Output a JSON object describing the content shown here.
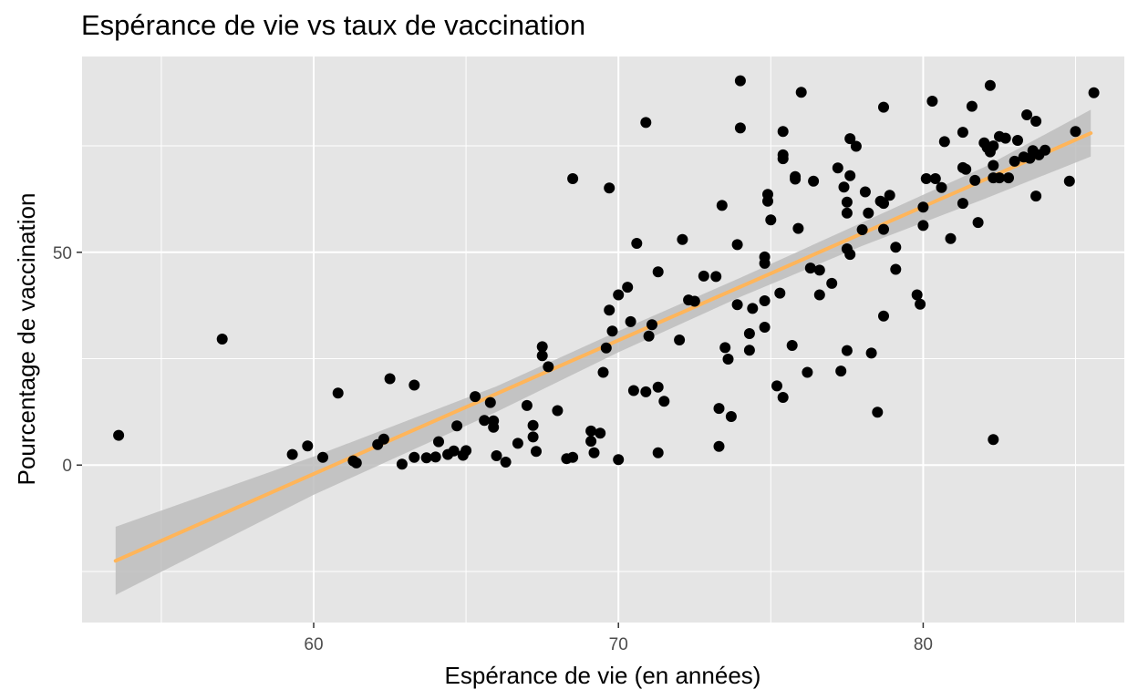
{
  "chart_data": {
    "type": "scatter",
    "title": "Espérance de vie vs taux de vaccination",
    "xlabel": "Espérance de vie (en années)",
    "ylabel": "Pourcentage de vaccination",
    "xlim": [
      52.4,
      86.6
    ],
    "ylim": [
      -37,
      96
    ],
    "x_ticks": [
      60,
      70,
      80
    ],
    "y_ticks": [
      0,
      50
    ],
    "grid": true,
    "legend": "none",
    "colors": {
      "panel": "#e5e5e5",
      "grid": "#ffffff",
      "points": "#000000",
      "fit_line": "#ffb55a",
      "ci_band": "#bdbdbd",
      "tick": "#333333"
    },
    "fit": {
      "method": "linear regression with confidence band",
      "line": [
        [
          53.5,
          -22.5
        ],
        [
          85.5,
          78.0
        ]
      ],
      "band": [
        {
          "x": 53.5,
          "lo": -30.5,
          "hi": -14.5
        },
        {
          "x": 60,
          "lo": -7.0,
          "hi": 2.0
        },
        {
          "x": 66,
          "lo": 12.5,
          "hi": 18.5
        },
        {
          "x": 70,
          "lo": 26.5,
          "hi": 31.5
        },
        {
          "x": 74,
          "lo": 39.5,
          "hi": 44.0
        },
        {
          "x": 78,
          "lo": 51.5,
          "hi": 57.0
        },
        {
          "x": 82,
          "lo": 62.5,
          "hi": 70.0
        },
        {
          "x": 85.5,
          "lo": 72.5,
          "hi": 83.5
        }
      ]
    },
    "points": [
      [
        53.6,
        7
      ],
      [
        57.0,
        29.6
      ],
      [
        59.3,
        2.5
      ],
      [
        59.8,
        4.5
      ],
      [
        60.3,
        1.8
      ],
      [
        60.8,
        16.9
      ],
      [
        61.3,
        1.0
      ],
      [
        61.4,
        0.5
      ],
      [
        62.1,
        4.8
      ],
      [
        62.3,
        6.1
      ],
      [
        62.5,
        20.3
      ],
      [
        62.9,
        0.2
      ],
      [
        63.3,
        18.8
      ],
      [
        63.3,
        1.8
      ],
      [
        63.7,
        1.7
      ],
      [
        64.0,
        1.9
      ],
      [
        64.1,
        5.5
      ],
      [
        64.4,
        2.5
      ],
      [
        64.6,
        3.3
      ],
      [
        64.7,
        9.2
      ],
      [
        64.9,
        2.3
      ],
      [
        65.0,
        3.4
      ],
      [
        65.3,
        16.1
      ],
      [
        65.6,
        10.5
      ],
      [
        65.8,
        14.7
      ],
      [
        65.9,
        10.4
      ],
      [
        65.9,
        8.9
      ],
      [
        66.0,
        2.2
      ],
      [
        66.3,
        0.7
      ],
      [
        66.7,
        5.1
      ],
      [
        67.0,
        14.0
      ],
      [
        67.2,
        9.3
      ],
      [
        67.2,
        6.6
      ],
      [
        67.3,
        3.2
      ],
      [
        67.5,
        25.7
      ],
      [
        67.5,
        27.8
      ],
      [
        67.7,
        23.1
      ],
      [
        68.0,
        12.8
      ],
      [
        68.3,
        1.5
      ],
      [
        68.5,
        67.3
      ],
      [
        68.5,
        1.8
      ],
      [
        69.1,
        8.0
      ],
      [
        69.1,
        5.6
      ],
      [
        69.2,
        2.9
      ],
      [
        69.4,
        7.5
      ],
      [
        69.5,
        21.8
      ],
      [
        69.6,
        27.5
      ],
      [
        69.7,
        65.1
      ],
      [
        69.7,
        36.4
      ],
      [
        69.8,
        31.5
      ],
      [
        70.0,
        1.3
      ],
      [
        70.0,
        40.0
      ],
      [
        70.3,
        41.8
      ],
      [
        70.4,
        33.7
      ],
      [
        70.5,
        17.5
      ],
      [
        70.6,
        52.1
      ],
      [
        70.9,
        80.5
      ],
      [
        70.9,
        17.2
      ],
      [
        71.0,
        30.3
      ],
      [
        71.1,
        33.0
      ],
      [
        71.3,
        2.9
      ],
      [
        71.3,
        45.4
      ],
      [
        71.3,
        18.3
      ],
      [
        71.5,
        15.0
      ],
      [
        72.0,
        29.4
      ],
      [
        72.1,
        53.0
      ],
      [
        72.3,
        38.8
      ],
      [
        72.5,
        38.5
      ],
      [
        72.8,
        44.4
      ],
      [
        73.2,
        44.3
      ],
      [
        73.3,
        13.3
      ],
      [
        73.3,
        4.4
      ],
      [
        73.4,
        61.0
      ],
      [
        73.5,
        27.6
      ],
      [
        73.6,
        24.9
      ],
      [
        73.7,
        11.4
      ],
      [
        73.9,
        51.8
      ],
      [
        73.9,
        37.7
      ],
      [
        74.0,
        90.3
      ],
      [
        74.0,
        79.2
      ],
      [
        74.3,
        30.9
      ],
      [
        74.3,
        27.0
      ],
      [
        74.4,
        36.8
      ],
      [
        74.8,
        48.9
      ],
      [
        74.8,
        47.4
      ],
      [
        74.8,
        38.6
      ],
      [
        74.8,
        32.4
      ],
      [
        74.9,
        62.0
      ],
      [
        74.9,
        63.6
      ],
      [
        75.0,
        57.6
      ],
      [
        75.2,
        18.6
      ],
      [
        75.3,
        40.4
      ],
      [
        75.4,
        78.4
      ],
      [
        75.4,
        72.9
      ],
      [
        75.4,
        72.0
      ],
      [
        75.4,
        15.9
      ],
      [
        75.7,
        28.1
      ],
      [
        75.8,
        67.2
      ],
      [
        75.8,
        67.8
      ],
      [
        75.9,
        55.6
      ],
      [
        76.0,
        87.6
      ],
      [
        76.2,
        21.8
      ],
      [
        76.3,
        46.3
      ],
      [
        76.4,
        66.7
      ],
      [
        76.6,
        45.8
      ],
      [
        76.6,
        40.0
      ],
      [
        77.0,
        42.7
      ],
      [
        77.2,
        69.8
      ],
      [
        77.3,
        22.1
      ],
      [
        77.4,
        65.3
      ],
      [
        77.5,
        61.8
      ],
      [
        77.5,
        59.2
      ],
      [
        77.5,
        50.8
      ],
      [
        77.5,
        26.9
      ],
      [
        77.6,
        76.7
      ],
      [
        77.6,
        68.0
      ],
      [
        77.6,
        49.5
      ],
      [
        77.8,
        74.9
      ],
      [
        78.0,
        55.3
      ],
      [
        78.1,
        64.2
      ],
      [
        78.2,
        59.2
      ],
      [
        78.3,
        26.3
      ],
      [
        78.5,
        12.4
      ],
      [
        78.6,
        62.0
      ],
      [
        78.7,
        84.1
      ],
      [
        78.7,
        61.5
      ],
      [
        78.7,
        55.4
      ],
      [
        78.7,
        35.0
      ],
      [
        78.9,
        63.4
      ],
      [
        79.1,
        51.2
      ],
      [
        79.1,
        46.0
      ],
      [
        79.8,
        40.0
      ],
      [
        79.9,
        37.8
      ],
      [
        80.0,
        60.6
      ],
      [
        80.0,
        56.3
      ],
      [
        80.1,
        67.3
      ],
      [
        80.3,
        85.5
      ],
      [
        80.4,
        67.3
      ],
      [
        80.6,
        65.2
      ],
      [
        80.7,
        76.0
      ],
      [
        80.9,
        53.2
      ],
      [
        81.3,
        69.9
      ],
      [
        81.3,
        78.2
      ],
      [
        81.3,
        61.5
      ],
      [
        81.4,
        69.5
      ],
      [
        81.6,
        84.3
      ],
      [
        81.7,
        66.9
      ],
      [
        81.8,
        57.0
      ],
      [
        82.0,
        75.7
      ],
      [
        82.1,
        74.6
      ],
      [
        82.2,
        73.6
      ],
      [
        82.2,
        89.2
      ],
      [
        82.3,
        75.0
      ],
      [
        82.3,
        70.4
      ],
      [
        82.3,
        67.5
      ],
      [
        82.3,
        6.0
      ],
      [
        82.5,
        67.5
      ],
      [
        82.5,
        77.2
      ],
      [
        82.7,
        76.8
      ],
      [
        82.8,
        67.5
      ],
      [
        83.0,
        71.4
      ],
      [
        83.1,
        76.3
      ],
      [
        83.3,
        72.4
      ],
      [
        83.4,
        82.3
      ],
      [
        83.5,
        72.1
      ],
      [
        83.6,
        73.9
      ],
      [
        83.7,
        80.8
      ],
      [
        83.7,
        63.2
      ],
      [
        83.8,
        72.9
      ],
      [
        84.0,
        74.0
      ],
      [
        84.8,
        66.7
      ],
      [
        85.0,
        78.4
      ],
      [
        85.6,
        87.5
      ]
    ]
  }
}
